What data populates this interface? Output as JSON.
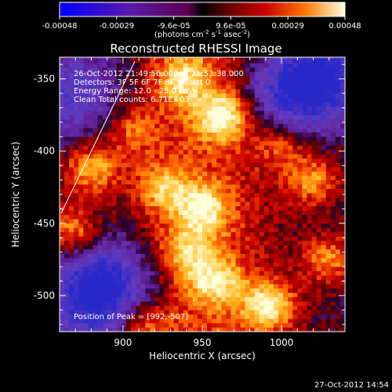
{
  "chart_data": {
    "type": "heatmap",
    "title": "Reconstructed RHESSI Image",
    "xlabel": "Heliocentric X (arcsec)",
    "ylabel": "Heliocentric Y (arcsec)",
    "xlim": [
      860,
      1040
    ],
    "ylim": [
      -525,
      -335
    ],
    "x_ticks": [
      "900",
      "950",
      "1000"
    ],
    "y_ticks": [
      "-350",
      "-400",
      "-450",
      "-500"
    ],
    "colorbar": {
      "ticks": [
        "-0.00048",
        "-0.00029",
        "-9.6e-05",
        "9.6e-05",
        "0.00029",
        "0.00048"
      ],
      "label_base": "(photons cm",
      "label_exp1": "-2",
      "label_mid": " s",
      "label_exp2": "-1",
      "label_mid2": " asec",
      "label_exp3": "-2",
      "label_end": ")"
    },
    "info_lines": [
      "26-Oct-2012 21:49:56.000 to 21:53:38.000",
      "Detectors: 3F 5F 6F 7F 8F 9F, Att 0",
      "Energy Range: 12.0 - 25.0 keV",
      "Clean     Total counts: 6.71E+03"
    ],
    "peak_label": "Position of Peak = [992,-507]",
    "timestamp": "27-Oct-2012 14:54",
    "hotspots": [
      {
        "x": 963,
        "y": -375,
        "level": 1.0
      },
      {
        "x": 992,
        "y": -507,
        "level": 1.0
      },
      {
        "x": 880,
        "y": -412,
        "level": 0.8
      },
      {
        "x": 868,
        "y": -455,
        "level": 0.75
      },
      {
        "x": 938,
        "y": -350,
        "level": 0.7
      },
      {
        "x": 950,
        "y": -440,
        "level": 0.8
      },
      {
        "x": 958,
        "y": -490,
        "level": 0.75
      },
      {
        "x": 940,
        "y": -470,
        "level": 0.6
      },
      {
        "x": 1020,
        "y": -420,
        "level": 0.7
      },
      {
        "x": 1030,
        "y": -475,
        "level": 0.65
      },
      {
        "x": 912,
        "y": -520,
        "level": 0.6
      },
      {
        "x": 1000,
        "y": -395,
        "level": 0.55
      },
      {
        "x": 925,
        "y": -425,
        "level": 0.6
      },
      {
        "x": 905,
        "y": -385,
        "level": 0.5
      }
    ],
    "coldspots": [
      {
        "x": 1005,
        "y": -360,
        "level": 0.9
      },
      {
        "x": 890,
        "y": -490,
        "level": 0.9
      },
      {
        "x": 1030,
        "y": -345,
        "level": 0.8
      },
      {
        "x": 870,
        "y": -360,
        "level": 0.7
      },
      {
        "x": 880,
        "y": -510,
        "level": 0.6
      }
    ]
  }
}
